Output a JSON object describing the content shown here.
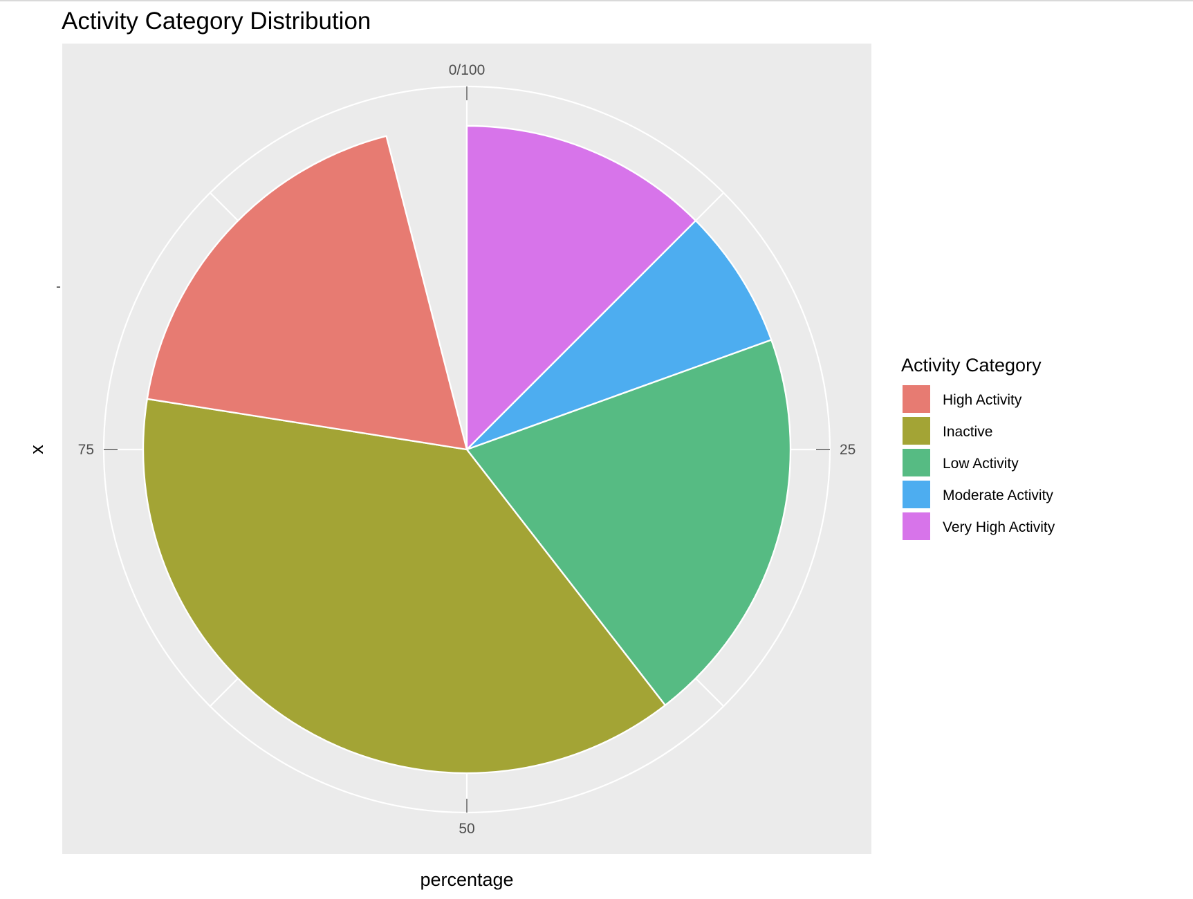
{
  "chart_data": {
    "type": "pie",
    "title": "Activity Category Distribution",
    "xlabel": "percentage",
    "ylabel": "x",
    "y_tick_label": "-",
    "theta_range": [
      0,
      100
    ],
    "theta_ticks": [
      "0/100",
      "25",
      "50",
      "75"
    ],
    "direction": "clockwise",
    "slice_order": [
      "Very High Activity",
      "Moderate Activity",
      "Low Activity",
      "Inactive",
      "High Activity"
    ],
    "slices": [
      {
        "label": "High Activity",
        "value": 18.5,
        "color": "#E77B72"
      },
      {
        "label": "Inactive",
        "value": 38.0,
        "color": "#A3A435"
      },
      {
        "label": "Low Activity",
        "value": 20.0,
        "color": "#56BB83"
      },
      {
        "label": "Moderate Activity",
        "value": 7.0,
        "color": "#4DADF0"
      },
      {
        "label": "Very High Activity",
        "value": 12.5,
        "color": "#D774EA"
      }
    ],
    "legend": {
      "title": "Activity Category",
      "position": "right"
    },
    "panel_background": "#EBEBEB",
    "grid": true
  }
}
